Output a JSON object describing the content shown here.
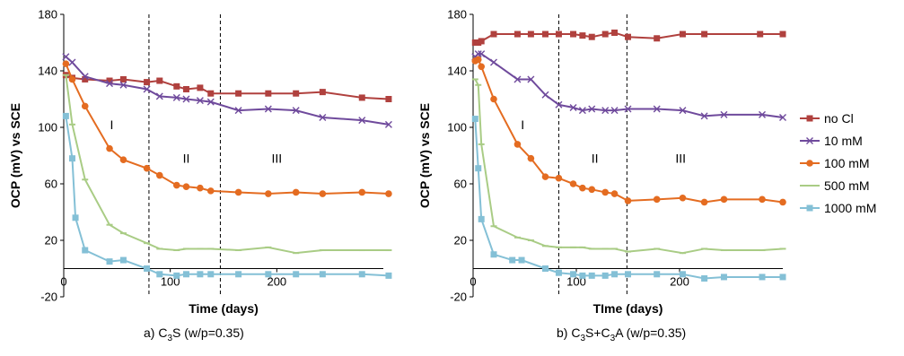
{
  "colors": {
    "no_cl": "#b0413e",
    "m10": "#6f4a9c",
    "m100": "#e46c21",
    "m500": "#a9cc85",
    "m1000": "#84c0d6"
  },
  "captions": {
    "a_prefix": "a) C",
    "a_sub1": "3",
    "a_rest": "S (w/p=0.35)",
    "b_prefix": "b) C",
    "b_sub1": "3",
    "b_mid": "S+C",
    "b_sub2": "3",
    "b_rest": "A (w/p=0.35)"
  },
  "legend": [
    {
      "label": "no Cl",
      "color": "#b0413e",
      "marker": "square"
    },
    {
      "label": "10 mM",
      "color": "#6f4a9c",
      "marker": "x"
    },
    {
      "label": "100 mM",
      "color": "#e46c21",
      "marker": "circle"
    },
    {
      "label": "500 mM",
      "color": "#a9cc85",
      "marker": "dash"
    },
    {
      "label": "1000 mM",
      "color": "#84c0d6",
      "marker": "square"
    }
  ],
  "chart_data": [
    {
      "type": "line",
      "xlabel": "Time (days)",
      "ylabel": "OCP (mV) vs SCE",
      "xlim": [
        0,
        300
      ],
      "ylim": [
        -20,
        180
      ],
      "xticks": [
        "0",
        "100",
        "200"
      ],
      "yticks": [
        "-20",
        "20",
        "60",
        "100",
        "140",
        "180"
      ],
      "vlines": [
        80,
        147
      ],
      "regions": [
        {
          "label": "I",
          "x": 45,
          "y": 102
        },
        {
          "label": "II",
          "x": 115,
          "y": 78
        },
        {
          "label": "III",
          "x": 200,
          "y": 78
        }
      ],
      "series": [
        {
          "name": "no Cl",
          "marker": "square",
          "color": "#b0413e",
          "x": [
            2,
            8,
            20,
            43,
            56,
            78,
            90,
            106,
            115,
            128,
            138,
            164,
            192,
            218,
            243,
            280,
            305
          ],
          "y": [
            137,
            135,
            134,
            133,
            134,
            132,
            133,
            129,
            127,
            128,
            124,
            124,
            124,
            124,
            125,
            121,
            120
          ]
        },
        {
          "name": "10 mM",
          "marker": "x",
          "color": "#6f4a9c",
          "x": [
            2,
            8,
            20,
            43,
            56,
            78,
            90,
            106,
            115,
            128,
            138,
            164,
            192,
            218,
            243,
            280,
            305
          ],
          "y": [
            150,
            146,
            136,
            131,
            130,
            127,
            122,
            121,
            120,
            119,
            118,
            112,
            113,
            112,
            107,
            105,
            102
          ]
        },
        {
          "name": "100 mM",
          "marker": "circle",
          "color": "#e46c21",
          "x": [
            2,
            8,
            20,
            43,
            56,
            78,
            90,
            106,
            115,
            128,
            138,
            164,
            192,
            218,
            243,
            280,
            305
          ],
          "y": [
            145,
            134,
            115,
            85,
            77,
            71,
            66,
            59,
            58,
            57,
            55,
            54,
            53,
            54,
            53,
            54,
            53
          ]
        },
        {
          "name": "500 mM",
          "marker": "dash",
          "color": "#a9cc85",
          "x": [
            2,
            8,
            20,
            43,
            56,
            78,
            90,
            106,
            115,
            128,
            138,
            164,
            192,
            218,
            243,
            280,
            305
          ],
          "y": [
            137,
            102,
            63,
            31,
            25,
            18,
            14,
            13,
            14,
            14,
            14,
            13,
            15,
            11,
            13,
            13,
            13
          ]
        },
        {
          "name": "1000 mM",
          "marker": "square",
          "color": "#84c0d6",
          "x": [
            2,
            8,
            11,
            20,
            43,
            56,
            78,
            90,
            106,
            115,
            128,
            138,
            164,
            192,
            218,
            243,
            280,
            305
          ],
          "y": [
            108,
            78,
            36,
            13,
            5,
            6,
            0,
            -4,
            -5,
            -4,
            -4,
            -4,
            -4,
            -4,
            -4,
            -4,
            -4,
            -5
          ]
        }
      ]
    },
    {
      "type": "line",
      "xlabel": "TIme (days)",
      "ylabel": "OCP (mV) vs SCE",
      "xlim": [
        0,
        300
      ],
      "ylim": [
        -20,
        180
      ],
      "xticks": [
        "0",
        "100",
        "200"
      ],
      "yticks": [
        "-20",
        "20",
        "60",
        "100",
        "140",
        "180"
      ],
      "vlines": [
        83,
        149
      ],
      "regions": [
        {
          "label": "I",
          "x": 48,
          "y": 102
        },
        {
          "label": "II",
          "x": 118,
          "y": 78
        },
        {
          "label": "III",
          "x": 201,
          "y": 78
        }
      ],
      "series": [
        {
          "name": "no Cl",
          "marker": "square",
          "color": "#b0413e",
          "x": [
            2,
            5,
            8,
            20,
            43,
            56,
            70,
            83,
            97,
            106,
            115,
            128,
            137,
            150,
            178,
            203,
            224,
            278,
            300
          ],
          "y": [
            160,
            160,
            161,
            166,
            166,
            166,
            166,
            166,
            166,
            165,
            164,
            166,
            167,
            164,
            163,
            166,
            166,
            166,
            166
          ]
        },
        {
          "name": "10 mM",
          "marker": "x",
          "color": "#6f4a9c",
          "x": [
            2,
            5,
            8,
            20,
            43,
            56,
            70,
            83,
            97,
            106,
            115,
            128,
            137,
            150,
            178,
            203,
            224,
            243,
            280,
            300
          ],
          "y": [
            150,
            152,
            152,
            146,
            134,
            134,
            123,
            116,
            114,
            112,
            113,
            112,
            112,
            113,
            113,
            112,
            108,
            109,
            109,
            107
          ]
        },
        {
          "name": "100 mM",
          "marker": "circle",
          "color": "#e46c21",
          "x": [
            2,
            5,
            8,
            20,
            43,
            56,
            70,
            83,
            97,
            106,
            115,
            128,
            137,
            150,
            178,
            203,
            224,
            243,
            280,
            300
          ],
          "y": [
            147,
            148,
            143,
            120,
            88,
            78,
            65,
            64,
            60,
            57,
            56,
            54,
            53,
            48,
            49,
            50,
            47,
            49,
            49,
            47
          ]
        },
        {
          "name": "500 mM",
          "marker": "dash",
          "color": "#a9cc85",
          "x": [
            2,
            5,
            8,
            20,
            43,
            56,
            70,
            83,
            97,
            106,
            115,
            128,
            137,
            150,
            178,
            203,
            224,
            243,
            280,
            300
          ],
          "y": [
            134,
            130,
            88,
            30,
            22,
            20,
            16,
            15,
            15,
            15,
            14,
            14,
            14,
            12,
            14,
            11,
            14,
            13,
            13,
            14
          ]
        },
        {
          "name": "1000 mM",
          "marker": "square",
          "color": "#84c0d6",
          "x": [
            2,
            5,
            8,
            20,
            38,
            47,
            70,
            83,
            97,
            106,
            115,
            128,
            137,
            150,
            178,
            203,
            224,
            243,
            280,
            300
          ],
          "y": [
            106,
            71,
            35,
            10,
            6,
            6,
            0,
            -3,
            -4,
            -5,
            -5,
            -5,
            -4,
            -4,
            -4,
            -4,
            -7,
            -6,
            -6,
            -6
          ]
        }
      ]
    }
  ]
}
